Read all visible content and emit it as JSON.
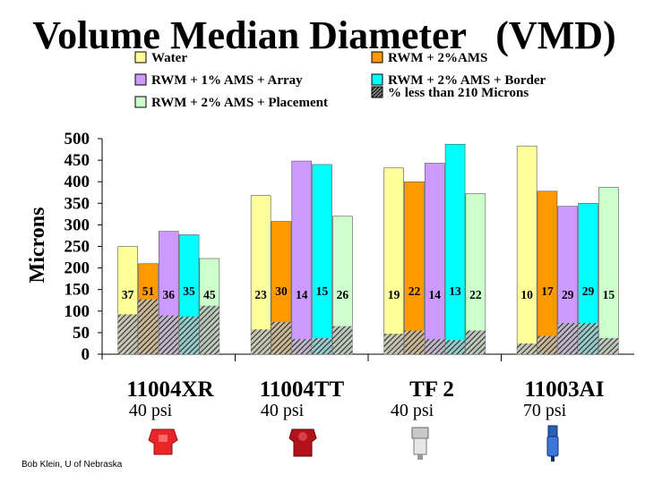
{
  "chart_data": {
    "type": "bar",
    "title": "Volume Median Diameter   (VMD)",
    "ylabel": "Microns",
    "ylim": [
      0,
      500
    ],
    "yticks": [
      "0",
      "50",
      "100",
      "150",
      "200",
      "250",
      "300",
      "350",
      "400",
      "450",
      "500"
    ],
    "categories": [
      "11004XR",
      "11004TT",
      "TF 2",
      "11003AI"
    ],
    "pressures": [
      "40 psi",
      "40 psi",
      "40 psi",
      "70 psi"
    ],
    "series": [
      {
        "name": "Water",
        "color": "#ffff99",
        "values": [
          250,
          368,
          432,
          483
        ]
      },
      {
        "name": "RWM + 2%AMS",
        "color": "#ff9900",
        "values": [
          210,
          308,
          400,
          378
        ]
      },
      {
        "name": "RWM + 1% AMS + Array",
        "color": "#cc99ff",
        "values": [
          285,
          448,
          443,
          343
        ]
      },
      {
        "name": "RWM + 2% AMS + Border",
        "color": "#00ffff",
        "values": [
          277,
          440,
          487,
          350
        ]
      },
      {
        "name": "RWM + 2% AMS + Placement",
        "color": "#ccffcc",
        "values": [
          222,
          320,
          372,
          387
        ]
      }
    ],
    "pct_less_than_210_label": "% less than 210 Microns",
    "pct_less_than_210": [
      [
        "37",
        "51",
        "36",
        "35",
        "45"
      ],
      [
        "23",
        "30",
        "14",
        "15",
        "26"
      ],
      [
        "19",
        "22",
        "14",
        "13",
        "22"
      ],
      [
        "10",
        "17",
        "29",
        "29",
        "15"
      ]
    ],
    "grid": false
  },
  "credit": "Bob Klein, U of Nebraska"
}
